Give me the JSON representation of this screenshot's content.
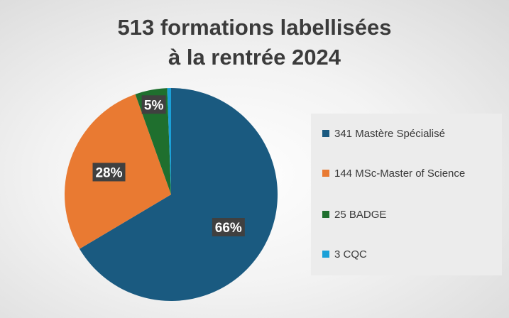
{
  "chart_data": {
    "type": "pie",
    "title_lines": [
      "513 formations labellisées",
      "à la rentrée 2024"
    ],
    "slices": [
      {
        "label": "341 Mastère Spécialisé",
        "value": 341,
        "percent_label": "66%",
        "color": "#1a5a80"
      },
      {
        "label": "144 MSc-Master of Science",
        "value": 144,
        "percent_label": "28%",
        "color": "#e97a32"
      },
      {
        "label": "25 BADGE",
        "value": 25,
        "percent_label": "5%",
        "color": "#1f6f2e"
      },
      {
        "label": "3 CQC",
        "value": 3,
        "percent_label": "",
        "color": "#1aa0d8"
      }
    ],
    "legend_position": "right",
    "start_angle_deg": 0,
    "direction": "clockwise"
  }
}
